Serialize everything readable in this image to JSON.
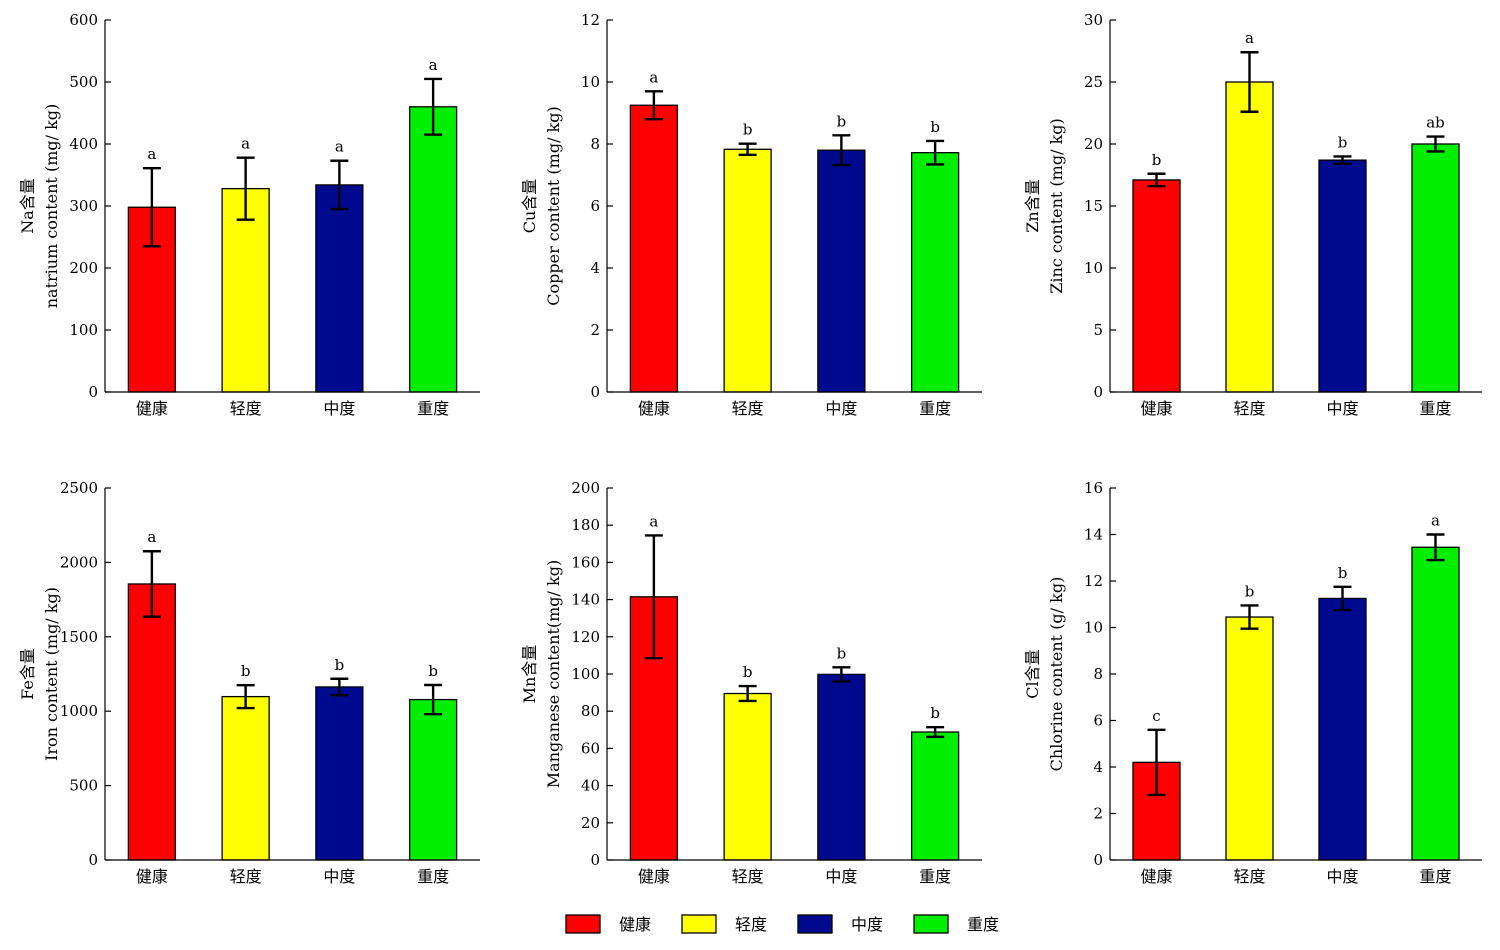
{
  "colors": {
    "健康": "#ff0000",
    "轻度": "#ffff00",
    "中度": "#000a8f",
    "重度": "#00ee00"
  },
  "legend": {
    "placement": "bottom-center",
    "items": [
      "健康",
      "轻度",
      "中度",
      "重度"
    ]
  },
  "chart_data": [
    {
      "type": "bar",
      "ylabel_line1": "Na含量",
      "ylabel_line2": "natrium content (mg/ kg)",
      "categories": [
        "健康",
        "轻度",
        "中度",
        "重度"
      ],
      "values": [
        298,
        328,
        334,
        460
      ],
      "errors": [
        63,
        50,
        39,
        45
      ],
      "letters": [
        "a",
        "a",
        "a",
        "a"
      ],
      "ylim": [
        0,
        600
      ],
      "yticks": [
        0,
        100,
        200,
        300,
        400,
        500,
        600
      ]
    },
    {
      "type": "bar",
      "ylabel_line1": "Cu含量",
      "ylabel_line2": "Copper content (mg/ kg)",
      "categories": [
        "健康",
        "轻度",
        "中度",
        "重度"
      ],
      "values": [
        9.25,
        7.83,
        7.8,
        7.72
      ],
      "errors": [
        0.45,
        0.18,
        0.48,
        0.38
      ],
      "letters": [
        "a",
        "b",
        "b",
        "b"
      ],
      "ylim": [
        0,
        12
      ],
      "yticks": [
        0,
        2,
        4,
        6,
        8,
        10,
        12
      ]
    },
    {
      "type": "bar",
      "ylabel_line1": "Zn含量",
      "ylabel_line2": "Zinc content (mg/ kg)",
      "categories": [
        "健康",
        "轻度",
        "中度",
        "重度"
      ],
      "values": [
        17.1,
        25.0,
        18.7,
        20.0
      ],
      "errors": [
        0.5,
        2.4,
        0.3,
        0.6
      ],
      "letters": [
        "b",
        "a",
        "b",
        "ab"
      ],
      "ylim": [
        0,
        30
      ],
      "yticks": [
        0,
        5,
        10,
        15,
        20,
        25,
        30
      ]
    },
    {
      "type": "bar",
      "ylabel_line1": "Fe含量",
      "ylabel_line2": "Iron content (mg/ kg)",
      "categories": [
        "健康",
        "轻度",
        "中度",
        "重度"
      ],
      "values": [
        1855,
        1098,
        1163,
        1078
      ],
      "errors": [
        220,
        77,
        55,
        98
      ],
      "letters": [
        "a",
        "b",
        "b",
        "b"
      ],
      "ylim": [
        0,
        2500
      ],
      "yticks": [
        0,
        500,
        1000,
        1500,
        2000,
        2500
      ]
    },
    {
      "type": "bar",
      "ylabel_line1": "Mn含量",
      "ylabel_line2": "Manganese content(mg/ kg)",
      "categories": [
        "健康",
        "轻度",
        "中度",
        "重度"
      ],
      "values": [
        141.5,
        89.5,
        99.8,
        68.8
      ],
      "errors": [
        33,
        4,
        3.8,
        2.6
      ],
      "letters": [
        "a",
        "b",
        "b",
        "b"
      ],
      "ylim": [
        0,
        200
      ],
      "yticks": [
        0,
        20,
        40,
        60,
        80,
        100,
        120,
        140,
        160,
        180,
        200
      ]
    },
    {
      "type": "bar",
      "ylabel_line1": "Cl含量",
      "ylabel_line2": "Chlorine content (g/ kg)",
      "categories": [
        "健康",
        "轻度",
        "中度",
        "重度"
      ],
      "values": [
        4.2,
        10.45,
        11.25,
        13.45
      ],
      "errors": [
        1.4,
        0.5,
        0.5,
        0.55
      ],
      "letters": [
        "c",
        "b",
        "b",
        "a"
      ],
      "ylim": [
        0,
        16
      ],
      "yticks": [
        0,
        2,
        4,
        6,
        8,
        10,
        12,
        14,
        16
      ]
    }
  ]
}
